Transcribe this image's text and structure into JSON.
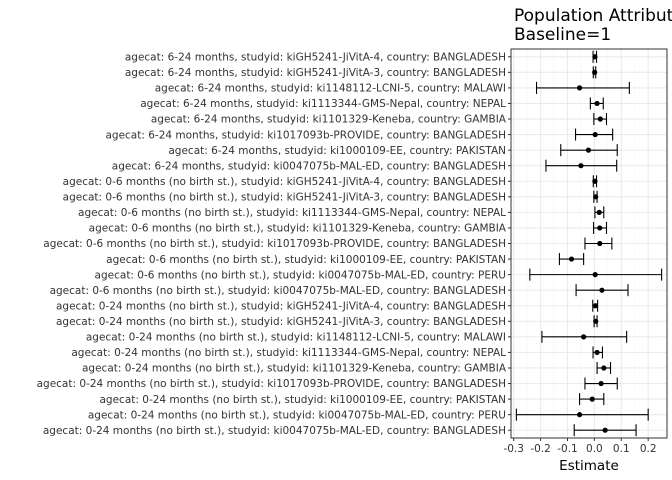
{
  "chart_data": {
    "type": "scatter",
    "title_lines": [
      "Population Attributable Difference",
      "Baseline=1"
    ],
    "xlabel": "Estimate",
    "ylabel": "",
    "xlim": [
      -0.31,
      0.27
    ],
    "xticks": [
      -0.3,
      -0.2,
      -0.1,
      0.0,
      0.1,
      0.2
    ],
    "xtick_labels": [
      "-0.3",
      "-0.2",
      "-0.1",
      "0.0",
      "0.1",
      "0.2"
    ],
    "grid": true,
    "legend": "none",
    "colors": {
      "point": "#000000",
      "panel_border": "#333333",
      "grid_major": "#ebebeb",
      "grid_minor": "#f5f5f5"
    },
    "rows": [
      {
        "label": "agecat: 6-24 months, studyid: kiGH5241-JiVitA-4, country: BANGLADESH",
        "estimate": 0.002,
        "lower": -0.005,
        "upper": 0.008
      },
      {
        "label": "agecat: 6-24 months, studyid: kiGH5241-JiVitA-3, country: BANGLADESH",
        "estimate": 0.001,
        "lower": -0.004,
        "upper": 0.005
      },
      {
        "label": "agecat: 6-24 months, studyid: ki1148112-LCNI-5, country: MALAWI",
        "estimate": -0.055,
        "lower": -0.215,
        "upper": 0.13
      },
      {
        "label": "agecat: 6-24 months, studyid: ki1113344-GMS-Nepal, country: NEPAL",
        "estimate": 0.01,
        "lower": -0.015,
        "upper": 0.033
      },
      {
        "label": "agecat: 6-24 months, studyid: ki1101329-Keneba, country: GAMBIA",
        "estimate": 0.022,
        "lower": -0.002,
        "upper": 0.045
      },
      {
        "label": "agecat: 6-24 months, studyid: ki1017093b-PROVIDE, country: BANGLADESH",
        "estimate": 0.003,
        "lower": -0.07,
        "upper": 0.068
      },
      {
        "label": "agecat: 6-24 months, studyid: ki1000109-EE, country: PAKISTAN",
        "estimate": -0.022,
        "lower": -0.125,
        "upper": 0.085
      },
      {
        "label": "agecat: 6-24 months, studyid: ki0047075b-MAL-ED, country: BANGLADESH",
        "estimate": -0.05,
        "lower": -0.18,
        "upper": 0.083
      },
      {
        "label": "agecat: 0-6 months (no birth st.), studyid: kiGH5241-JiVitA-4, country: BANGLADESH",
        "estimate": 0.002,
        "lower": -0.004,
        "upper": 0.008
      },
      {
        "label": "agecat: 0-6 months (no birth st.), studyid: kiGH5241-JiVitA-3, country: BANGLADESH",
        "estimate": 0.005,
        "lower": -0.002,
        "upper": 0.01
      },
      {
        "label": "agecat: 0-6 months (no birth st.), studyid: ki1113344-GMS-Nepal, country: NEPAL",
        "estimate": 0.018,
        "lower": 0.002,
        "upper": 0.035
      },
      {
        "label": "agecat: 0-6 months (no birth st.), studyid: ki1101329-Keneba, country: GAMBIA",
        "estimate": 0.02,
        "lower": -0.003,
        "upper": 0.045
      },
      {
        "label": "agecat: 0-6 months (no birth st.), studyid: ki1017093b-PROVIDE, country: BANGLADESH",
        "estimate": 0.02,
        "lower": -0.035,
        "upper": 0.065
      },
      {
        "label": "agecat: 0-6 months (no birth st.), studyid: ki1000109-EE, country: PAKISTAN",
        "estimate": -0.085,
        "lower": -0.13,
        "upper": -0.04
      },
      {
        "label": "agecat: 0-6 months (no birth st.), studyid: ki0047075b-MAL-ED, country: PERU",
        "estimate": 0.003,
        "lower": -0.24,
        "upper": 0.25
      },
      {
        "label": "agecat: 0-6 months (no birth st.), studyid: ki0047075b-MAL-ED, country: BANGLADESH",
        "estimate": 0.028,
        "lower": -0.068,
        "upper": 0.125
      },
      {
        "label": "agecat: 0-24 months (no birth st.), studyid: kiGH5241-JiVitA-4, country: BANGLADESH",
        "estimate": 0.004,
        "lower": -0.006,
        "upper": 0.012
      },
      {
        "label": "agecat: 0-24 months (no birth st.), studyid: kiGH5241-JiVitA-3, country: BANGLADESH",
        "estimate": 0.005,
        "lower": -0.001,
        "upper": 0.01
      },
      {
        "label": "agecat: 0-24 months (no birth st.), studyid: ki1148112-LCNI-5, country: MALAWI",
        "estimate": -0.04,
        "lower": -0.195,
        "upper": 0.12
      },
      {
        "label": "agecat: 0-24 months (no birth st.), studyid: ki1113344-GMS-Nepal, country: NEPAL",
        "estimate": 0.01,
        "lower": -0.005,
        "upper": 0.03
      },
      {
        "label": "agecat: 0-24 months (no birth st.), studyid: ki1101329-Keneba, country: GAMBIA",
        "estimate": 0.035,
        "lower": 0.01,
        "upper": 0.06
      },
      {
        "label": "agecat: 0-24 months (no birth st.), studyid: ki1017093b-PROVIDE, country: BANGLADESH",
        "estimate": 0.025,
        "lower": -0.035,
        "upper": 0.085
      },
      {
        "label": "agecat: 0-24 months (no birth st.), studyid: ki1000109-EE, country: PAKISTAN",
        "estimate": -0.008,
        "lower": -0.055,
        "upper": 0.035
      },
      {
        "label": "agecat: 0-24 months (no birth st.), studyid: ki0047075b-MAL-ED, country: PERU",
        "estimate": -0.055,
        "lower": -0.29,
        "upper": 0.2
      },
      {
        "label": "agecat: 0-24 months (no birth st.), studyid: ki0047075b-MAL-ED, country: BANGLADESH",
        "estimate": 0.04,
        "lower": -0.075,
        "upper": 0.155
      }
    ]
  }
}
